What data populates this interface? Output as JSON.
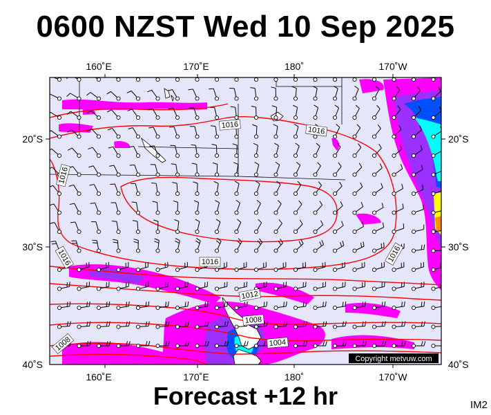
{
  "title": "0600 NZST Wed 10 Sep 2025",
  "footer": "Forecast +12 hr",
  "model_id": "IM2",
  "copyright": "Copyright metvuw.com",
  "axes": {
    "top_lon_labels": [
      "160˚E",
      "170˚E",
      "180˚",
      "170˚W"
    ],
    "bottom_lon_labels": [
      "160˚E",
      "170˚E",
      "180˚",
      "170˚W"
    ],
    "left_lat_labels": [
      "20˚S",
      "30˚S",
      "40˚S"
    ],
    "right_lat_labels": [
      "20˚S",
      "30˚S",
      "40˚S"
    ]
  },
  "isobar_labels": [
    "1016",
    "1016",
    "1016",
    "1016",
    "1016",
    "1016",
    "1012",
    "1008",
    "1004",
    "1008"
  ],
  "colors": {
    "ocean": "#e6e6fa",
    "land": "#ffffff",
    "isobar": "#ff0000",
    "rain_light": "#ff00ff",
    "rain_medium": "#9b30ff",
    "rain_heavy": "#0050ff",
    "rain_very_heavy": "#00ffff",
    "wind_barb": "#000000"
  }
}
